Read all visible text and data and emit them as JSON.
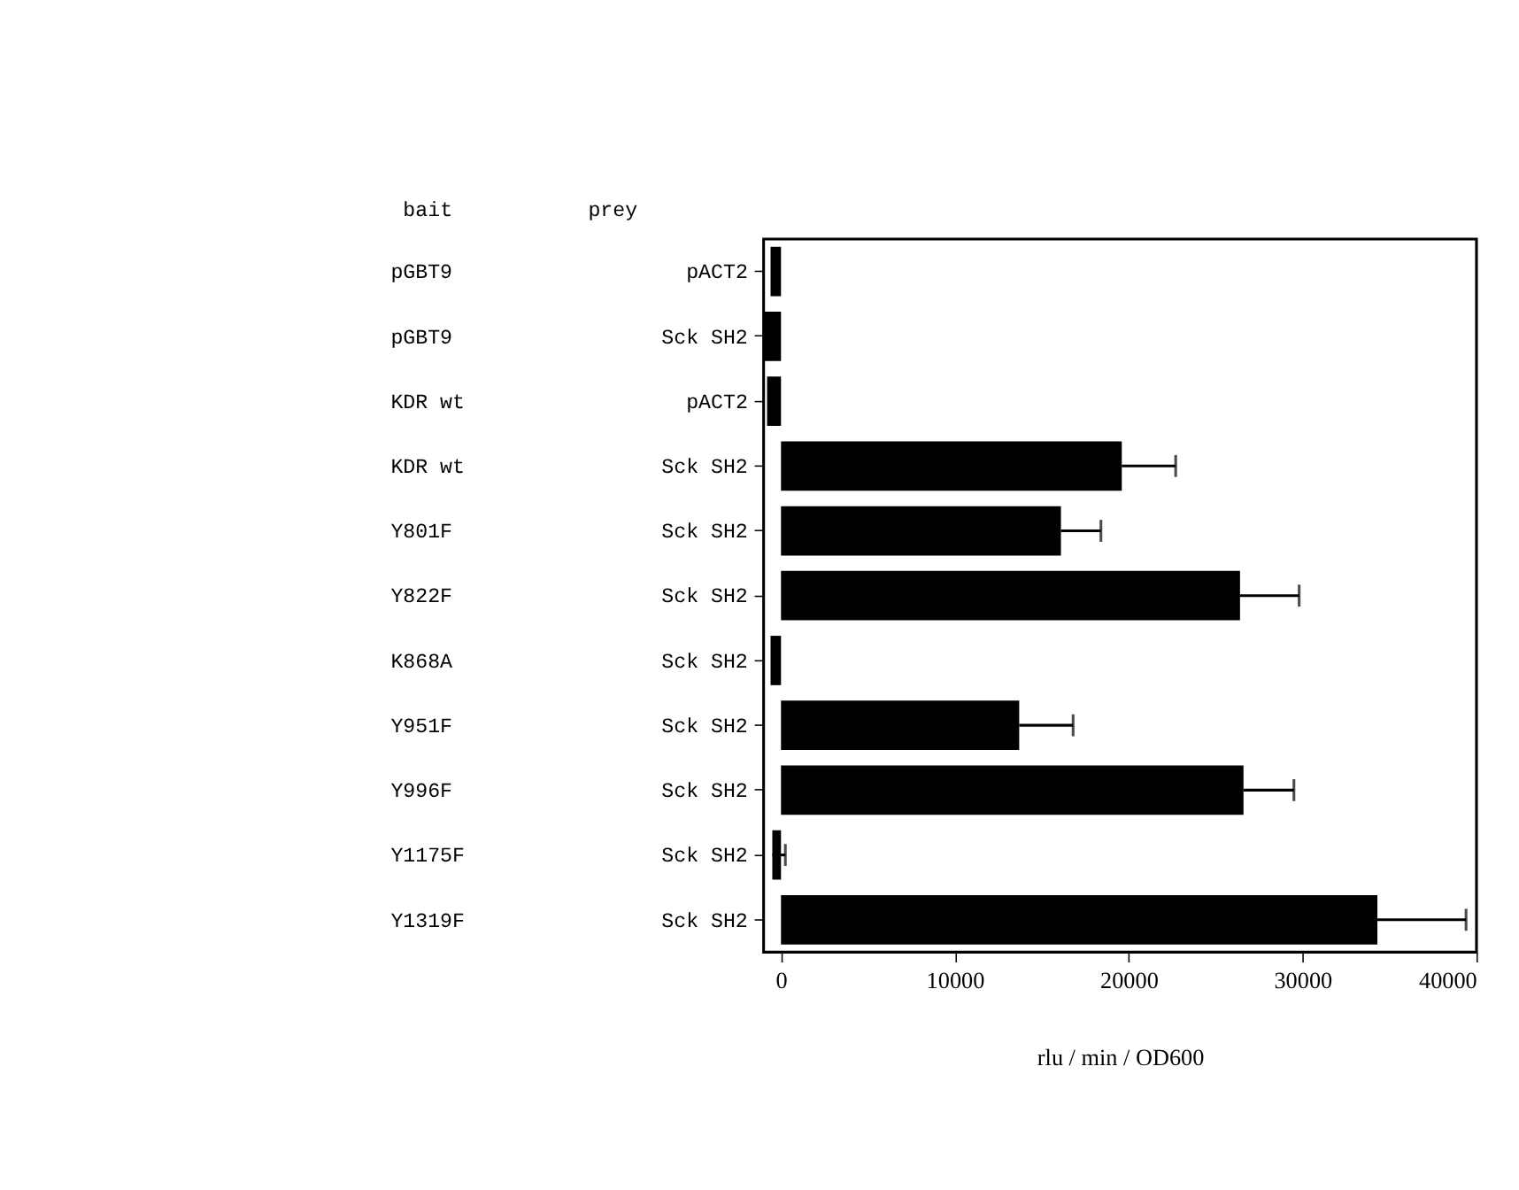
{
  "chart_data": {
    "type": "bar",
    "orientation": "horizontal",
    "xlabel": "rlu / min / OD600",
    "annotations": [
      "bait",
      "prey"
    ],
    "categories": [
      "pACT2",
      "Sck SH2",
      "pACT2",
      "Sck SH2",
      "Sck SH2",
      "Sck SH2",
      "Sck SH2",
      "Sck SH2",
      "Sck SH2",
      "Sck SH2",
      "Sck SH2"
    ],
    "y2_categories": [
      "pGBT9",
      "pGBT9",
      "KDR wt",
      "KDR wt",
      "Y801F",
      "Y822F",
      "K868A",
      "Y951F",
      "Y996F",
      "Y1175F",
      "Y1319F"
    ],
    "values": [
      -600,
      -1000,
      -800,
      19600,
      16100,
      26400,
      -600,
      13700,
      26600,
      -500,
      34300
    ],
    "errors": [
      null,
      null,
      null,
      [
        19600,
        22700
      ],
      [
        16100,
        18400
      ],
      [
        26400,
        29800
      ],
      null,
      [
        13700,
        16800
      ],
      [
        26600,
        29500
      ],
      [
        -500,
        250
      ],
      [
        34300,
        39400
      ]
    ],
    "color": "#000000",
    "xlim": [
      -1000,
      40000
    ],
    "xticks": [
      0,
      10000,
      20000,
      30000,
      40000
    ],
    "grid": false
  }
}
